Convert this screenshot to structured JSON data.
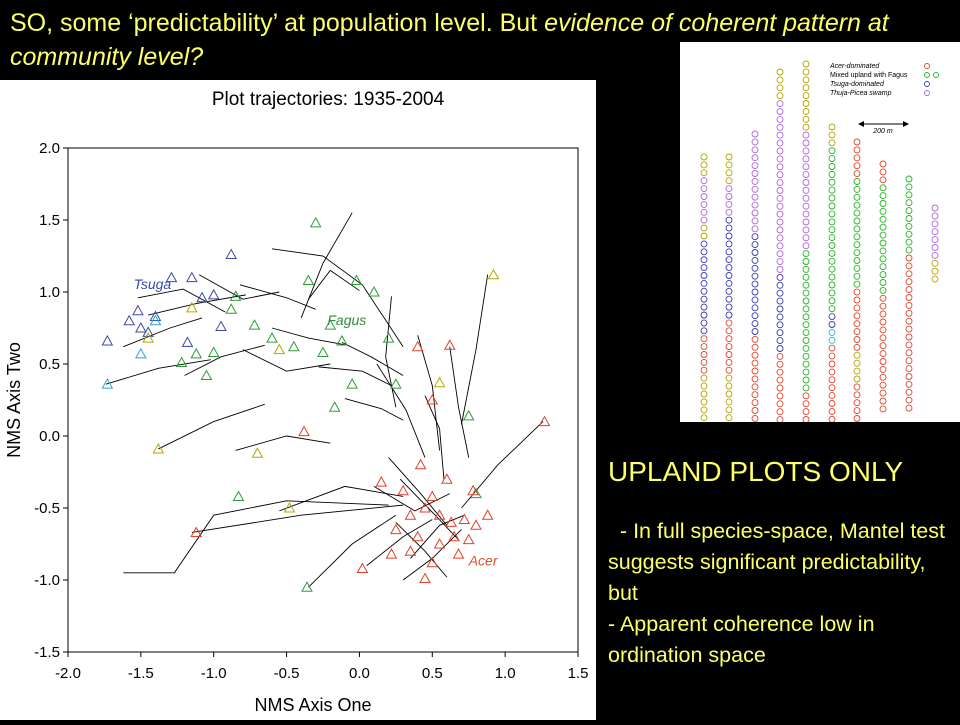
{
  "slide": {
    "title_main": "SO, some ‘predictability’ at population level. But ",
    "title_italic": "evidence of coherent pattern at community level?",
    "notes_heading": "UPLAND PLOTS ONLY",
    "notes_line1": "  - In full species-space, Mantel test suggests significant predictability, but",
    "notes_line2": "- Apparent coherence low in ordination space"
  },
  "chart_data": {
    "type": "scatter",
    "title": "Plot trajectories: 1935-2004",
    "xlabel": "NMS Axis One",
    "ylabel": "NMS Axis Two",
    "xlim": [
      -2.0,
      1.5
    ],
    "ylim": [
      -1.5,
      2.0
    ],
    "xticks": [
      "-2.0",
      "-1.5",
      "-1.0",
      "-0.5",
      "0.0",
      "0.5",
      "1.0",
      "1.5"
    ],
    "yticks": [
      "-1.5",
      "-1.0",
      "-0.5",
      "0.0",
      "0.5",
      "1.0",
      "1.5",
      "2.0"
    ],
    "grid": false,
    "annotations": [
      {
        "text": "Tsuga",
        "x": -1.55,
        "y": 1.02,
        "color": "#3a4aa8"
      },
      {
        "text": "Fagus",
        "x": -0.22,
        "y": 0.77,
        "color": "#2e8b3a"
      },
      {
        "text": "Acer",
        "x": 0.75,
        "y": -0.9,
        "color": "#e0502a"
      }
    ],
    "trajectories": [
      [
        [
          -1.62,
          0.62
        ],
        [
          -1.3,
          0.75
        ],
        [
          -1.08,
          0.82
        ]
      ],
      [
        [
          -1.52,
          0.96
        ],
        [
          -1.21,
          1.02
        ],
        [
          -0.92,
          0.86
        ]
      ],
      [
        [
          -1.74,
          0.36
        ],
        [
          -1.38,
          0.47
        ],
        [
          -1.02,
          0.53
        ]
      ],
      [
        [
          -1.45,
          0.84
        ],
        [
          -1.12,
          0.92
        ],
        [
          -0.78,
          0.98
        ]
      ],
      [
        [
          -1.2,
          0.42
        ],
        [
          -0.95,
          0.55
        ],
        [
          -0.65,
          0.63
        ]
      ],
      [
        [
          -0.82,
          1.05
        ],
        [
          -0.5,
          0.96
        ],
        [
          -0.3,
          0.88
        ]
      ],
      [
        [
          -0.35,
          0.95
        ],
        [
          -0.2,
          1.15
        ],
        [
          0.0,
          1.01
        ]
      ],
      [
        [
          -0.6,
          0.75
        ],
        [
          -0.35,
          0.68
        ],
        [
          -0.08,
          0.63
        ]
      ],
      [
        [
          -0.28,
          0.48
        ],
        [
          0.02,
          0.45
        ],
        [
          0.22,
          0.35
        ]
      ],
      [
        [
          -0.1,
          0.26
        ],
        [
          0.15,
          0.19
        ],
        [
          0.3,
          0.11
        ]
      ],
      [
        [
          -1.38,
          -0.09
        ],
        [
          -1.0,
          0.1
        ],
        [
          -0.65,
          0.22
        ]
      ],
      [
        [
          -0.85,
          -0.1
        ],
        [
          -0.5,
          0.0
        ],
        [
          -0.2,
          -0.05
        ]
      ],
      [
        [
          -0.55,
          -0.52
        ],
        [
          -0.1,
          -0.35
        ],
        [
          0.3,
          -0.42
        ]
      ],
      [
        [
          -1.15,
          -0.67
        ],
        [
          -0.4,
          -0.55
        ],
        [
          0.3,
          -0.48
        ]
      ],
      [
        [
          -1.62,
          -0.95
        ],
        [
          -1.27,
          -0.95
        ],
        [
          -1.0,
          -0.55
        ],
        [
          -0.5,
          -0.45
        ],
        [
          0.2,
          -0.48
        ]
      ],
      [
        [
          -0.6,
          1.3
        ],
        [
          -0.25,
          1.25
        ],
        [
          0.02,
          1.05
        ],
        [
          0.3,
          0.62
        ]
      ],
      [
        [
          0.12,
          0.5
        ],
        [
          0.32,
          0.18
        ],
        [
          0.45,
          -0.15
        ]
      ],
      [
        [
          0.4,
          0.7
        ],
        [
          0.5,
          0.35
        ],
        [
          0.55,
          -0.1
        ]
      ],
      [
        [
          0.28,
          -0.3
        ],
        [
          0.52,
          -0.55
        ],
        [
          0.68,
          -0.72
        ]
      ],
      [
        [
          0.35,
          -0.85
        ],
        [
          0.55,
          -0.62
        ],
        [
          0.72,
          -0.55
        ]
      ],
      [
        [
          0.2,
          -0.15
        ],
        [
          0.42,
          -0.4
        ],
        [
          0.6,
          -0.62
        ]
      ],
      [
        [
          0.05,
          -0.9
        ],
        [
          0.3,
          -0.7
        ],
        [
          0.5,
          -0.58
        ]
      ],
      [
        [
          0.1,
          -0.35
        ],
        [
          0.38,
          -0.52
        ],
        [
          0.62,
          -0.4
        ]
      ],
      [
        [
          0.25,
          -0.6
        ],
        [
          0.45,
          -0.8
        ],
        [
          0.6,
          -0.98
        ]
      ],
      [
        [
          0.3,
          -1.0
        ],
        [
          0.5,
          -0.85
        ],
        [
          0.7,
          -0.65
        ]
      ],
      [
        [
          0.45,
          0.28
        ],
        [
          0.55,
          0.05
        ],
        [
          0.58,
          -0.3
        ]
      ],
      [
        [
          0.62,
          0.62
        ],
        [
          0.68,
          0.2
        ],
        [
          0.75,
          -0.15
        ]
      ],
      [
        [
          0.88,
          1.12
        ],
        [
          0.8,
          0.6
        ],
        [
          0.7,
          0.08
        ]
      ],
      [
        [
          1.26,
          0.1
        ],
        [
          0.95,
          -0.2
        ],
        [
          0.7,
          -0.5
        ]
      ],
      [
        [
          -0.35,
          -1.05
        ],
        [
          -0.05,
          -0.75
        ],
        [
          0.25,
          -0.55
        ]
      ],
      [
        [
          -0.8,
          0.6
        ],
        [
          -0.5,
          0.45
        ],
        [
          -0.2,
          0.5
        ]
      ],
      [
        [
          -1.1,
          1.12
        ],
        [
          -0.8,
          0.95
        ],
        [
          -0.55,
          1.0
        ]
      ],
      [
        [
          -0.12,
          0.65
        ],
        [
          0.08,
          0.55
        ],
        [
          0.3,
          0.42
        ]
      ],
      [
        [
          -0.05,
          1.55
        ],
        [
          -0.25,
          1.2
        ],
        [
          -0.4,
          0.82
        ]
      ],
      [
        [
          0.22,
          0.97
        ],
        [
          0.18,
          0.55
        ],
        [
          0.25,
          0.2
        ]
      ]
    ],
    "points": [
      {
        "x": -1.73,
        "y": 0.66,
        "g": "Tsuga"
      },
      {
        "x": -1.58,
        "y": 0.8,
        "g": "Tsuga"
      },
      {
        "x": -1.52,
        "y": 0.87,
        "g": "Tsuga"
      },
      {
        "x": -1.45,
        "y": 0.72,
        "g": "Tsuga"
      },
      {
        "x": -1.4,
        "y": 0.83,
        "g": "Tsuga"
      },
      {
        "x": -1.29,
        "y": 1.1,
        "g": "Tsuga"
      },
      {
        "x": -1.15,
        "y": 1.1,
        "g": "Tsuga"
      },
      {
        "x": -1.18,
        "y": 0.65,
        "g": "Tsuga"
      },
      {
        "x": -1.08,
        "y": 0.96,
        "g": "Tsuga"
      },
      {
        "x": -0.95,
        "y": 0.76,
        "g": "Tsuga"
      },
      {
        "x": -0.88,
        "y": 1.26,
        "g": "Tsuga"
      },
      {
        "x": -1.0,
        "y": 0.98,
        "g": "Tsuga"
      },
      {
        "x": -1.5,
        "y": 0.75,
        "g": "Tsuga"
      },
      {
        "x": -1.73,
        "y": 0.36,
        "g": "Tsuga-light"
      },
      {
        "x": -1.5,
        "y": 0.57,
        "g": "Tsuga-light"
      },
      {
        "x": -1.4,
        "y": 0.8,
        "g": "Tsuga-light"
      },
      {
        "x": -0.3,
        "y": 1.48,
        "g": "Fagus"
      },
      {
        "x": -0.35,
        "y": 1.08,
        "g": "Fagus"
      },
      {
        "x": -0.02,
        "y": 1.08,
        "g": "Fagus"
      },
      {
        "x": -0.85,
        "y": 0.97,
        "g": "Fagus"
      },
      {
        "x": -0.6,
        "y": 0.68,
        "g": "Fagus"
      },
      {
        "x": -0.45,
        "y": 0.62,
        "g": "Fagus"
      },
      {
        "x": -0.25,
        "y": 0.58,
        "g": "Fagus"
      },
      {
        "x": -0.12,
        "y": 0.66,
        "g": "Fagus"
      },
      {
        "x": -1.0,
        "y": 0.58,
        "g": "Fagus"
      },
      {
        "x": -1.12,
        "y": 0.57,
        "g": "Fagus"
      },
      {
        "x": -1.22,
        "y": 0.51,
        "g": "Fagus"
      },
      {
        "x": -1.05,
        "y": 0.42,
        "g": "Fagus"
      },
      {
        "x": -0.72,
        "y": 0.77,
        "g": "Fagus"
      },
      {
        "x": -0.2,
        "y": 0.77,
        "g": "Fagus"
      },
      {
        "x": -0.17,
        "y": 0.2,
        "g": "Fagus"
      },
      {
        "x": -0.05,
        "y": 0.36,
        "g": "Fagus"
      },
      {
        "x": 0.25,
        "y": 0.36,
        "g": "Fagus"
      },
      {
        "x": -0.83,
        "y": -0.42,
        "g": "Fagus"
      },
      {
        "x": -0.36,
        "y": -1.05,
        "g": "Fagus"
      },
      {
        "x": 0.75,
        "y": 0.14,
        "g": "Fagus"
      },
      {
        "x": 0.2,
        "y": 0.68,
        "g": "Fagus"
      },
      {
        "x": -0.88,
        "y": 0.88,
        "g": "Fagus"
      },
      {
        "x": 0.1,
        "y": 1.0,
        "g": "Fagus"
      },
      {
        "x": 0.8,
        "y": -0.4,
        "g": "Fagus"
      },
      {
        "x": -1.15,
        "y": 0.89,
        "g": "Fagus-yellow"
      },
      {
        "x": -0.7,
        "y": -0.12,
        "g": "Fagus-yellow"
      },
      {
        "x": -1.38,
        "y": -0.09,
        "g": "Fagus-yellow"
      },
      {
        "x": -0.55,
        "y": 0.6,
        "g": "Fagus-yellow"
      },
      {
        "x": 0.55,
        "y": 0.37,
        "g": "Fagus-yellow"
      },
      {
        "x": 0.92,
        "y": 1.12,
        "g": "Fagus-yellow"
      },
      {
        "x": -1.45,
        "y": 0.68,
        "g": "Fagus-yellow"
      },
      {
        "x": -0.48,
        "y": -0.5,
        "g": "Fagus-yellow"
      },
      {
        "x": 0.62,
        "y": 0.63,
        "g": "Acer"
      },
      {
        "x": 0.4,
        "y": 0.62,
        "g": "Acer"
      },
      {
        "x": 1.27,
        "y": 0.1,
        "g": "Acer"
      },
      {
        "x": 0.5,
        "y": 0.25,
        "g": "Acer"
      },
      {
        "x": -0.38,
        "y": 0.03,
        "g": "Acer"
      },
      {
        "x": -1.12,
        "y": -0.67,
        "g": "Acer"
      },
      {
        "x": 0.02,
        "y": -0.92,
        "g": "Acer"
      },
      {
        "x": 0.22,
        "y": -0.82,
        "g": "Acer"
      },
      {
        "x": 0.45,
        "y": -0.99,
        "g": "Acer"
      },
      {
        "x": 0.55,
        "y": -0.75,
        "g": "Acer"
      },
      {
        "x": 0.63,
        "y": -0.6,
        "g": "Acer"
      },
      {
        "x": 0.72,
        "y": -0.58,
        "g": "Acer"
      },
      {
        "x": 0.8,
        "y": -0.62,
        "g": "Acer"
      },
      {
        "x": 0.88,
        "y": -0.55,
        "g": "Acer"
      },
      {
        "x": 0.35,
        "y": -0.55,
        "g": "Acer"
      },
      {
        "x": 0.3,
        "y": -0.38,
        "g": "Acer"
      },
      {
        "x": 0.5,
        "y": -0.42,
        "g": "Acer"
      },
      {
        "x": 0.42,
        "y": -0.2,
        "g": "Acer"
      },
      {
        "x": 0.6,
        "y": -0.3,
        "g": "Acer"
      },
      {
        "x": 0.15,
        "y": -0.32,
        "g": "Acer"
      },
      {
        "x": 0.25,
        "y": -0.65,
        "g": "Acer"
      },
      {
        "x": 0.4,
        "y": -0.7,
        "g": "Acer"
      },
      {
        "x": 0.5,
        "y": -0.88,
        "g": "Acer"
      },
      {
        "x": 0.68,
        "y": -0.82,
        "g": "Acer"
      },
      {
        "x": 0.75,
        "y": -0.72,
        "g": "Acer"
      },
      {
        "x": 0.55,
        "y": -0.55,
        "g": "Acer"
      },
      {
        "x": 0.45,
        "y": -0.5,
        "g": "Acer"
      },
      {
        "x": 0.65,
        "y": -0.7,
        "g": "Acer"
      },
      {
        "x": 0.35,
        "y": -0.8,
        "g": "Acer"
      },
      {
        "x": 0.78,
        "y": -0.38,
        "g": "Acer"
      }
    ]
  },
  "map": {
    "legend": [
      {
        "text": "Acer-dominated",
        "color": "#e0452b"
      },
      {
        "text": "Mixed upland with Fagus",
        "color": "#26b526"
      },
      {
        "text": "Tsuga-dominated",
        "color": "#3a3ab0"
      },
      {
        "text": "Thuja-Picea swamp",
        "color": "#b366d9"
      }
    ],
    "scale_label": "200 m"
  },
  "colors": {
    "title_text": "#ffff66",
    "tsuga": "#3a4aa8",
    "tsuga_light": "#29a3d6",
    "fagus": "#2e9b3a",
    "fagus_yellow": "#b8a600",
    "acer": "#e0402a",
    "map_acer": "#e0452b",
    "map_fagus": "#26b526",
    "map_tsuga": "#3a3ab0",
    "map_thuja": "#b366d9",
    "map_olive": "#b3a400"
  }
}
